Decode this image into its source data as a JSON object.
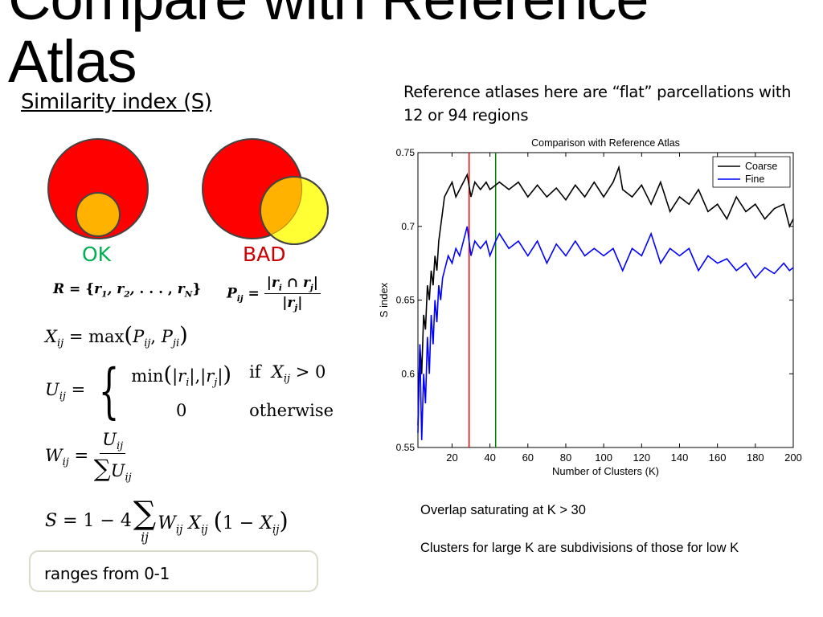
{
  "slide": {
    "title": "Compare with Reference\nAtlas",
    "subtitle": "Similarity index (S)",
    "description": "Reference atlases here are “flat” parcellations with 12 or 94 regions",
    "ok_label": "OK",
    "bad_label": "BAD",
    "range_text": "ranges from 0-1",
    "note_overlap": "Overlap  saturating at K > 30",
    "note_clusters": "Clusters for large K are subdivisions of those for low K",
    "colors": {
      "big_circle": "#ff0000",
      "small_circle_ok": "#ffb300",
      "small_circle_bad": "#ffff33",
      "overlap": "#ffb300",
      "ok_text": "#00b050",
      "bad_text": "#cc0000"
    }
  },
  "formulas": {
    "r_def": "R = {r1, r2, ..., rN}",
    "p_def": "Pij = |ri ∩ rj| / |rj|",
    "x_def": "Xij = max(Pij, Pji)",
    "u_def": "Uij = min(|ri|, |rj|) if Xij > 0; 0 otherwise",
    "w_def": "Wij = Uij / ΣUij",
    "s_def": "S = 1 − 4 Σij Wij Xij (1 − Xij)",
    "u_if": "if",
    "u_else": "otherwise"
  },
  "chart_data": {
    "type": "line",
    "title": "Comparison with Reference Atlas",
    "xlabel": "Number of Clusters (K)",
    "ylabel": "S index",
    "xlim": [
      2,
      200
    ],
    "ylim": [
      0.55,
      0.75
    ],
    "x_ticks": [
      20,
      40,
      60,
      80,
      100,
      120,
      140,
      160,
      180,
      200
    ],
    "y_ticks": [
      0.55,
      0.6,
      0.65,
      0.7,
      0.75
    ],
    "legend_position": "top-right",
    "grid": false,
    "reference_lines": [
      {
        "x": 29,
        "color": "#ff0000"
      },
      {
        "x": 43,
        "color": "#008000"
      }
    ],
    "series": [
      {
        "name": "Coarse",
        "color": "#000000",
        "x": [
          2,
          3,
          4,
          5,
          6,
          7,
          8,
          9,
          10,
          11,
          12,
          13,
          14,
          15,
          16,
          18,
          20,
          22,
          24,
          26,
          28,
          30,
          32,
          35,
          38,
          40,
          43,
          45,
          50,
          55,
          60,
          65,
          70,
          75,
          80,
          85,
          90,
          95,
          100,
          105,
          108,
          110,
          115,
          120,
          125,
          130,
          135,
          140,
          145,
          150,
          155,
          160,
          165,
          170,
          175,
          180,
          185,
          190,
          195,
          198,
          200
        ],
        "values": [
          0.565,
          0.62,
          0.6,
          0.64,
          0.63,
          0.66,
          0.65,
          0.67,
          0.66,
          0.68,
          0.67,
          0.69,
          0.7,
          0.71,
          0.72,
          0.725,
          0.73,
          0.72,
          0.725,
          0.73,
          0.735,
          0.72,
          0.73,
          0.725,
          0.73,
          0.725,
          0.728,
          0.73,
          0.725,
          0.73,
          0.72,
          0.728,
          0.72,
          0.726,
          0.718,
          0.728,
          0.72,
          0.73,
          0.72,
          0.73,
          0.74,
          0.725,
          0.72,
          0.728,
          0.715,
          0.73,
          0.71,
          0.72,
          0.715,
          0.725,
          0.71,
          0.715,
          0.705,
          0.72,
          0.71,
          0.715,
          0.705,
          0.712,
          0.715,
          0.7,
          0.705
        ]
      },
      {
        "name": "Fine",
        "color": "#0000ff",
        "x": [
          2,
          3,
          4,
          5,
          6,
          7,
          8,
          9,
          10,
          11,
          12,
          13,
          14,
          15,
          16,
          18,
          20,
          22,
          24,
          26,
          28,
          30,
          32,
          35,
          38,
          40,
          43,
          45,
          50,
          55,
          60,
          65,
          70,
          75,
          80,
          85,
          90,
          95,
          100,
          105,
          110,
          115,
          120,
          125,
          130,
          135,
          140,
          145,
          150,
          155,
          160,
          165,
          170,
          175,
          180,
          185,
          190,
          195,
          198,
          200
        ],
        "values": [
          0.56,
          0.62,
          0.555,
          0.6,
          0.58,
          0.625,
          0.6,
          0.64,
          0.62,
          0.65,
          0.635,
          0.66,
          0.65,
          0.665,
          0.67,
          0.68,
          0.675,
          0.685,
          0.68,
          0.69,
          0.7,
          0.68,
          0.69,
          0.685,
          0.69,
          0.68,
          0.69,
          0.695,
          0.685,
          0.69,
          0.68,
          0.69,
          0.675,
          0.688,
          0.68,
          0.69,
          0.68,
          0.685,
          0.68,
          0.685,
          0.67,
          0.685,
          0.68,
          0.695,
          0.675,
          0.685,
          0.68,
          0.685,
          0.67,
          0.68,
          0.675,
          0.678,
          0.67,
          0.675,
          0.665,
          0.672,
          0.668,
          0.675,
          0.67,
          0.672
        ]
      }
    ]
  }
}
